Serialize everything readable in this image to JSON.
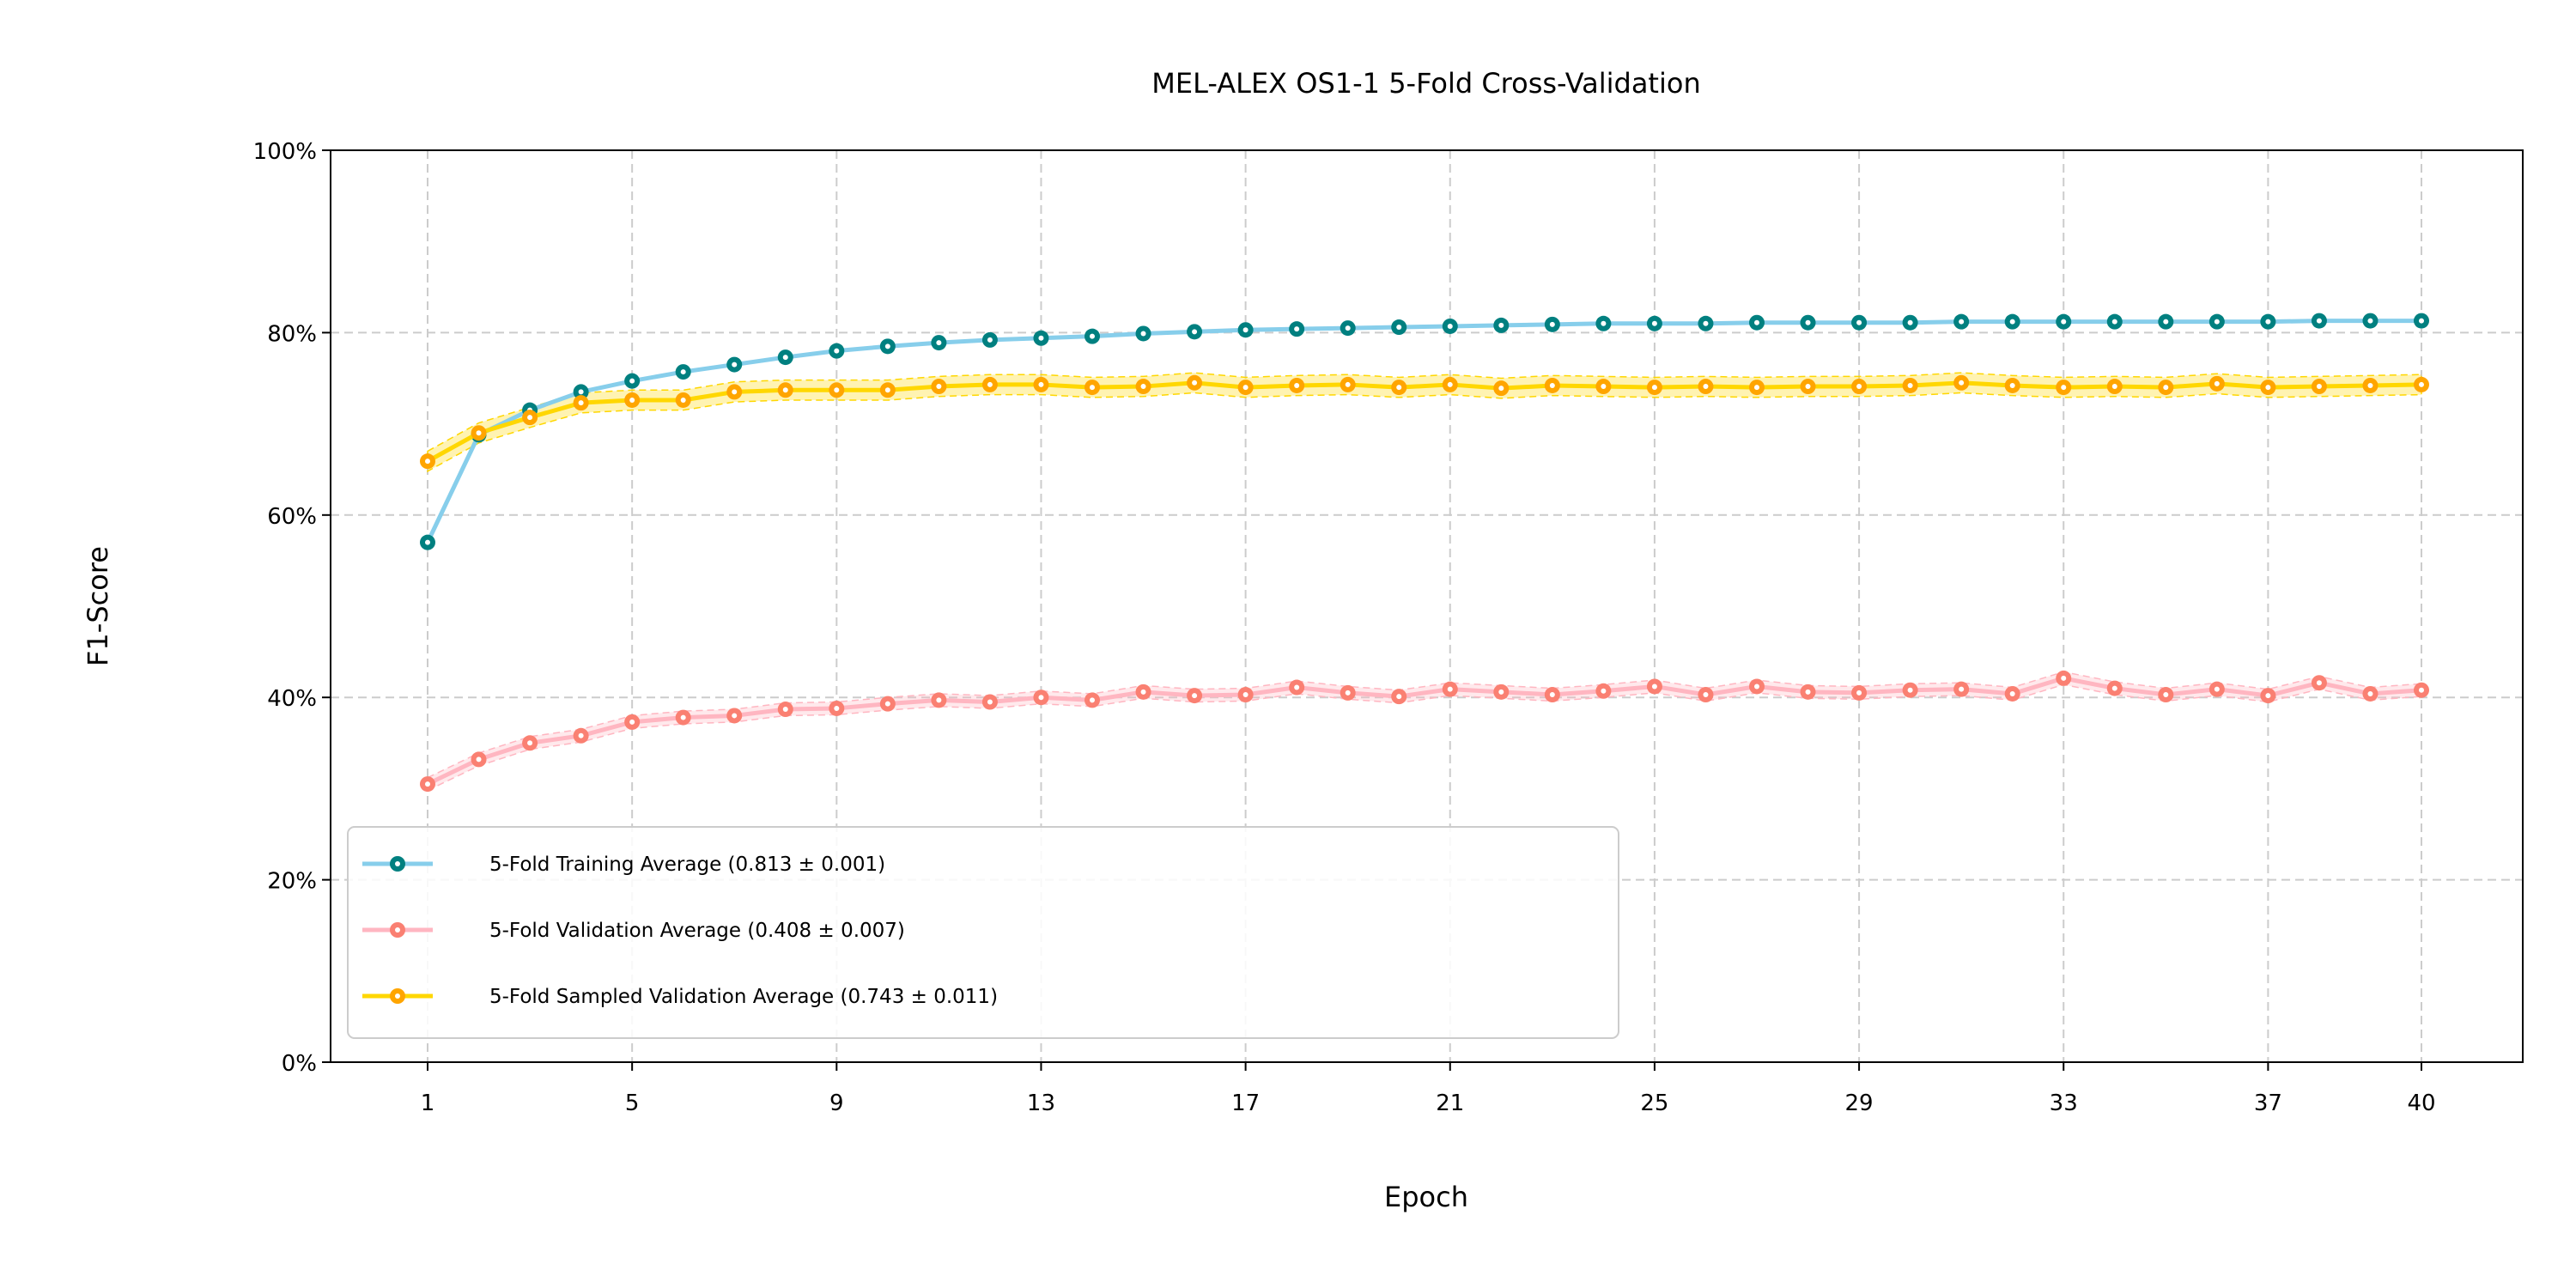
{
  "chart_data": {
    "type": "line",
    "title": "MEL-ALEX OS1-1 5-Fold Cross-Validation",
    "xlabel": "Epoch",
    "ylabel": "F1-Score",
    "xlim": [
      1,
      40
    ],
    "ylim": [
      0,
      1
    ],
    "x_ticks": [
      1,
      5,
      9,
      13,
      17,
      21,
      25,
      29,
      33,
      37,
      40
    ],
    "x_tick_labels": [
      "1",
      "5",
      "9",
      "13",
      "17",
      "21",
      "25",
      "29",
      "33",
      "37",
      "40"
    ],
    "y_ticks": [
      0,
      0.2,
      0.4,
      0.6,
      0.8,
      1.0
    ],
    "y_tick_labels": [
      "0%",
      "20%",
      "40%",
      "60%",
      "80%",
      "100%"
    ],
    "grid": true,
    "legend_position": "lower-left",
    "series": [
      {
        "name": "5-Fold Training Average (0.813 ± 0.001)",
        "line_color": "#87CEEB",
        "marker_color": "#008080",
        "x": [
          1,
          2,
          3,
          4,
          5,
          6,
          7,
          8,
          9,
          10,
          11,
          12,
          13,
          14,
          15,
          16,
          17,
          18,
          19,
          20,
          21,
          22,
          23,
          24,
          25,
          26,
          27,
          28,
          29,
          30,
          31,
          32,
          33,
          34,
          35,
          36,
          37,
          38,
          39,
          40
        ],
        "values": [
          0.57,
          0.688,
          0.715,
          0.735,
          0.747,
          0.757,
          0.765,
          0.773,
          0.78,
          0.785,
          0.789,
          0.792,
          0.794,
          0.796,
          0.799,
          0.801,
          0.803,
          0.804,
          0.805,
          0.806,
          0.807,
          0.808,
          0.809,
          0.81,
          0.81,
          0.81,
          0.811,
          0.811,
          0.811,
          0.811,
          0.812,
          0.812,
          0.812,
          0.812,
          0.812,
          0.812,
          0.812,
          0.813,
          0.813,
          0.813
        ],
        "band": 0.001
      },
      {
        "name": "5-Fold Validation Average (0.408 ± 0.007)",
        "line_color": "#FFB6C1",
        "marker_color": "#FA8072",
        "x": [
          1,
          2,
          3,
          4,
          5,
          6,
          7,
          8,
          9,
          10,
          11,
          12,
          13,
          14,
          15,
          16,
          17,
          18,
          19,
          20,
          21,
          22,
          23,
          24,
          25,
          26,
          27,
          28,
          29,
          30,
          31,
          32,
          33,
          34,
          35,
          36,
          37,
          38,
          39,
          40
        ],
        "values": [
          0.305,
          0.332,
          0.35,
          0.358,
          0.373,
          0.378,
          0.38,
          0.387,
          0.388,
          0.393,
          0.397,
          0.395,
          0.4,
          0.397,
          0.406,
          0.402,
          0.403,
          0.411,
          0.405,
          0.401,
          0.409,
          0.406,
          0.403,
          0.407,
          0.412,
          0.403,
          0.412,
          0.406,
          0.405,
          0.408,
          0.409,
          0.404,
          0.421,
          0.41,
          0.403,
          0.409,
          0.402,
          0.416,
          0.404,
          0.408
        ],
        "band": 0.007
      },
      {
        "name": "5-Fold Sampled Validation Average (0.743 ± 0.011)",
        "line_color": "#FFD700",
        "marker_color": "#FFA500",
        "x": [
          1,
          2,
          3,
          4,
          5,
          6,
          7,
          8,
          9,
          10,
          11,
          12,
          13,
          14,
          15,
          16,
          17,
          18,
          19,
          20,
          21,
          22,
          23,
          24,
          25,
          26,
          27,
          28,
          29,
          30,
          31,
          32,
          33,
          34,
          35,
          36,
          37,
          38,
          39,
          40
        ],
        "values": [
          0.659,
          0.69,
          0.707,
          0.723,
          0.726,
          0.726,
          0.735,
          0.737,
          0.737,
          0.737,
          0.741,
          0.743,
          0.743,
          0.74,
          0.741,
          0.745,
          0.74,
          0.742,
          0.743,
          0.74,
          0.743,
          0.739,
          0.742,
          0.741,
          0.74,
          0.741,
          0.74,
          0.741,
          0.741,
          0.742,
          0.745,
          0.742,
          0.74,
          0.741,
          0.74,
          0.744,
          0.74,
          0.741,
          0.742,
          0.743
        ],
        "band": 0.011
      }
    ]
  }
}
